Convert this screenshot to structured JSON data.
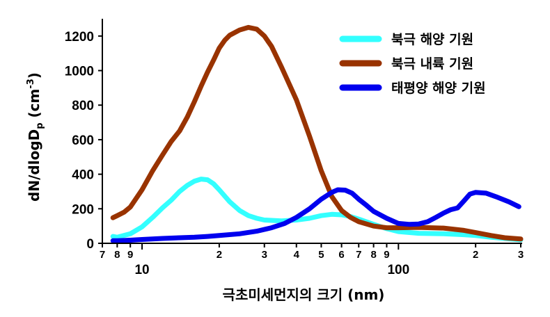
{
  "chart_data": {
    "type": "line",
    "xlabel": "극초미세먼지의 크기 (nm)",
    "ylabel_main": "dN/dlogD",
    "ylabel_sub": "p",
    "ylabel_unit": " (cm",
    "ylabel_exp": "-3",
    "ylabel_close": ")",
    "x_scale": "log",
    "xlim": [
      7,
      300
    ],
    "ylim": [
      0,
      1300
    ],
    "y_ticks": [
      0,
      200,
      400,
      600,
      800,
      1000,
      1200
    ],
    "x_ticks": [
      {
        "value": 7,
        "label": "7",
        "major": false
      },
      {
        "value": 8,
        "label": "8",
        "major": false
      },
      {
        "value": 9,
        "label": "9",
        "major": false
      },
      {
        "value": 10,
        "label": "10",
        "major": true
      },
      {
        "value": 20,
        "label": "2",
        "major": false
      },
      {
        "value": 30,
        "label": "3",
        "major": false
      },
      {
        "value": 40,
        "label": "4",
        "major": false
      },
      {
        "value": 50,
        "label": "5",
        "major": false
      },
      {
        "value": 60,
        "label": "6",
        "major": false
      },
      {
        "value": 70,
        "label": "7",
        "major": false
      },
      {
        "value": 80,
        "label": "8",
        "major": false
      },
      {
        "value": 90,
        "label": "9",
        "major": false
      },
      {
        "value": 100,
        "label": "100",
        "major": true
      },
      {
        "value": 200,
        "label": "2",
        "major": false
      },
      {
        "value": 300,
        "label": "3",
        "major": false
      }
    ],
    "grid": false,
    "legend_position": "top-right",
    "series": [
      {
        "name": "북극 해양 기원",
        "color": "#33ffff",
        "points": [
          [
            7.7,
            40
          ],
          [
            8,
            35
          ],
          [
            9,
            55
          ],
          [
            10,
            95
          ],
          [
            11,
            150
          ],
          [
            12,
            205
          ],
          [
            13,
            250
          ],
          [
            14,
            300
          ],
          [
            15,
            335
          ],
          [
            16,
            360
          ],
          [
            17,
            372
          ],
          [
            18,
            368
          ],
          [
            19,
            345
          ],
          [
            20,
            310
          ],
          [
            22,
            240
          ],
          [
            24,
            190
          ],
          [
            26,
            160
          ],
          [
            28,
            145
          ],
          [
            30,
            135
          ],
          [
            35,
            130
          ],
          [
            40,
            135
          ],
          [
            45,
            145
          ],
          [
            50,
            160
          ],
          [
            55,
            168
          ],
          [
            60,
            165
          ],
          [
            65,
            155
          ],
          [
            70,
            140
          ],
          [
            80,
            110
          ],
          [
            90,
            85
          ],
          [
            100,
            68
          ],
          [
            120,
            58
          ],
          [
            150,
            55
          ],
          [
            180,
            50
          ],
          [
            200,
            45
          ],
          [
            230,
            35
          ],
          [
            260,
            28
          ],
          [
            300,
            20
          ]
        ]
      },
      {
        "name": "북극 내륙 기원",
        "color": "#993300",
        "points": [
          [
            7.7,
            148
          ],
          [
            8,
            160
          ],
          [
            8.5,
            180
          ],
          [
            9,
            210
          ],
          [
            10,
            310
          ],
          [
            11,
            420
          ],
          [
            12,
            510
          ],
          [
            13,
            590
          ],
          [
            14,
            650
          ],
          [
            15,
            730
          ],
          [
            16,
            820
          ],
          [
            17,
            910
          ],
          [
            18,
            990
          ],
          [
            19,
            1060
          ],
          [
            20,
            1130
          ],
          [
            21,
            1175
          ],
          [
            22,
            1205
          ],
          [
            24,
            1235
          ],
          [
            26,
            1250
          ],
          [
            28,
            1240
          ],
          [
            30,
            1200
          ],
          [
            32,
            1140
          ],
          [
            35,
            1020
          ],
          [
            40,
            830
          ],
          [
            45,
            620
          ],
          [
            50,
            420
          ],
          [
            55,
            270
          ],
          [
            60,
            190
          ],
          [
            65,
            150
          ],
          [
            70,
            125
          ],
          [
            80,
            100
          ],
          [
            90,
            90
          ],
          [
            100,
            90
          ],
          [
            120,
            92
          ],
          [
            150,
            88
          ],
          [
            180,
            75
          ],
          [
            200,
            62
          ],
          [
            230,
            45
          ],
          [
            260,
            32
          ],
          [
            300,
            25
          ]
        ]
      },
      {
        "name": "태평양 해양 기원",
        "color": "#0000ee",
        "points": [
          [
            7.7,
            15
          ],
          [
            8,
            15
          ],
          [
            9,
            18
          ],
          [
            10,
            22
          ],
          [
            12,
            28
          ],
          [
            14,
            32
          ],
          [
            16,
            35
          ],
          [
            18,
            40
          ],
          [
            20,
            45
          ],
          [
            24,
            55
          ],
          [
            28,
            70
          ],
          [
            32,
            90
          ],
          [
            36,
            115
          ],
          [
            40,
            150
          ],
          [
            45,
            200
          ],
          [
            50,
            255
          ],
          [
            55,
            295
          ],
          [
            58,
            310
          ],
          [
            62,
            308
          ],
          [
            66,
            290
          ],
          [
            70,
            255
          ],
          [
            75,
            220
          ],
          [
            80,
            185
          ],
          [
            90,
            145
          ],
          [
            100,
            115
          ],
          [
            110,
            110
          ],
          [
            120,
            112
          ],
          [
            130,
            125
          ],
          [
            140,
            150
          ],
          [
            150,
            175
          ],
          [
            160,
            195
          ],
          [
            170,
            205
          ],
          [
            180,
            245
          ],
          [
            190,
            285
          ],
          [
            200,
            295
          ],
          [
            220,
            290
          ],
          [
            240,
            270
          ],
          [
            270,
            240
          ],
          [
            295,
            212
          ]
        ]
      }
    ]
  }
}
